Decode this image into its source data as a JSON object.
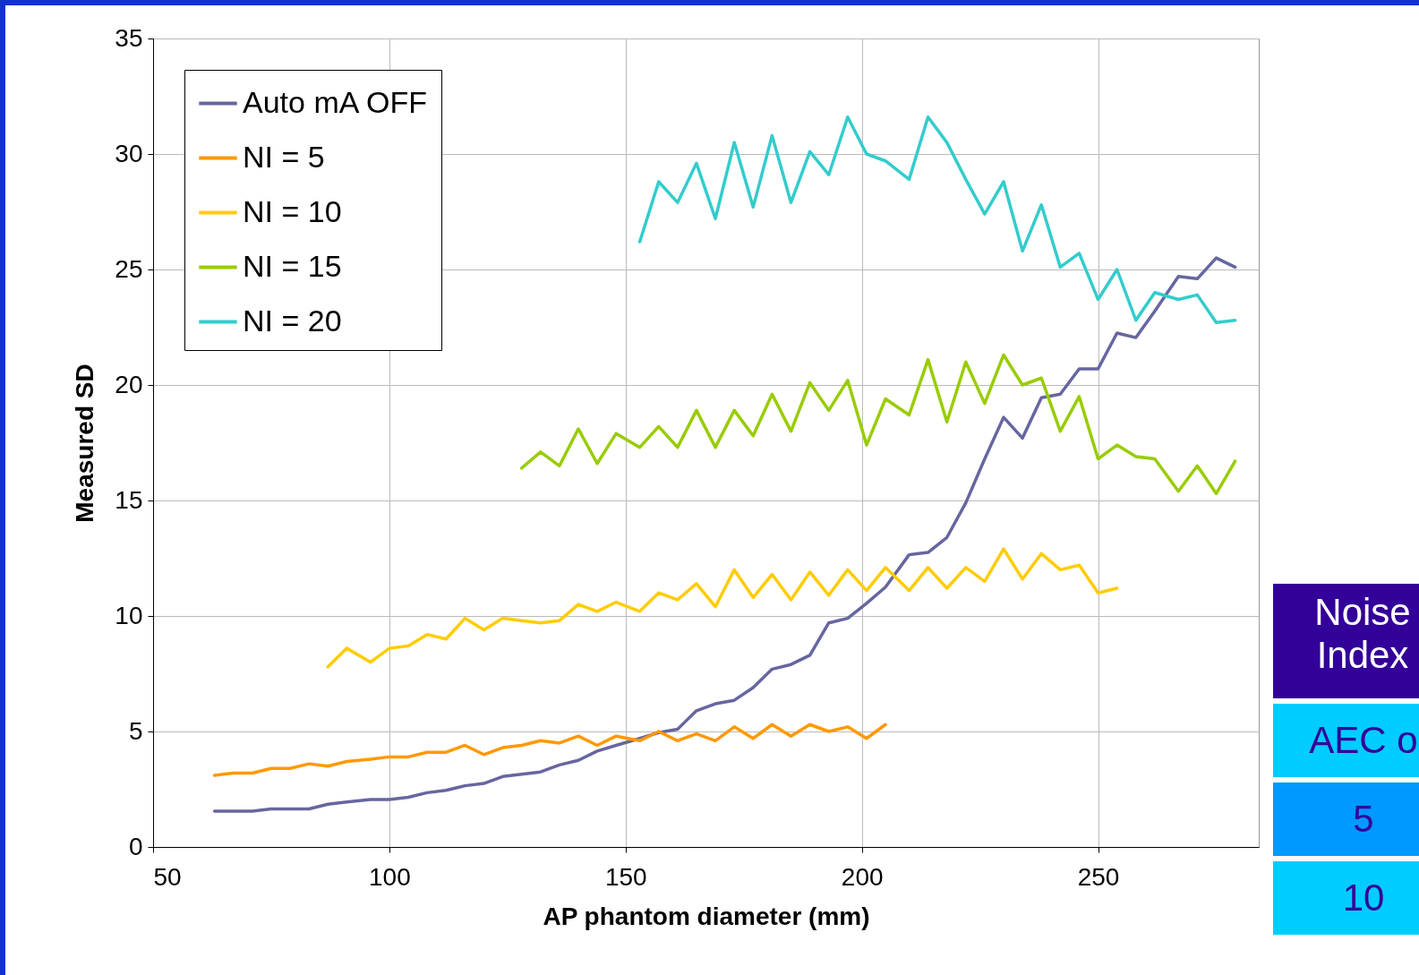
{
  "chart_data": {
    "type": "line",
    "xlabel": "AP phantom diameter (mm)",
    "ylabel": "Measured SD",
    "xlim": [
      50,
      284
    ],
    "ylim": [
      0,
      35
    ],
    "xticks": [
      50,
      100,
      150,
      200,
      250
    ],
    "yticks": [
      0,
      5,
      10,
      15,
      20,
      25,
      30,
      35
    ],
    "grid": true,
    "legend": "top left",
    "annotations": [
      "Noise Index",
      "AEC o",
      "5",
      "10"
    ],
    "series": [
      {
        "name": "Auto mA OFF",
        "color": "#6666a0",
        "x": [
          63,
          67,
          71,
          75,
          79,
          83,
          87,
          91,
          96,
          100,
          104,
          108,
          112,
          116,
          120,
          124,
          128,
          132,
          136,
          140,
          144,
          148,
          153,
          157,
          161,
          165,
          169,
          173,
          177,
          181,
          185,
          189,
          193,
          197,
          201,
          205,
          210,
          214,
          218,
          222,
          226,
          230,
          234,
          238,
          242,
          246,
          250,
          254,
          258,
          262,
          267,
          271,
          275,
          279
        ],
        "values": [
          1.55,
          1.55,
          1.55,
          1.65,
          1.65,
          1.65,
          1.85,
          1.95,
          2.05,
          2.05,
          2.15,
          2.35,
          2.45,
          2.65,
          2.75,
          3.05,
          3.15,
          3.25,
          3.55,
          3.75,
          4.15,
          4.4,
          4.7,
          4.95,
          5.1,
          5.9,
          6.2,
          6.35,
          6.9,
          7.7,
          7.9,
          8.3,
          9.7,
          9.9,
          10.55,
          11.25,
          12.65,
          12.75,
          13.4,
          14.9,
          16.8,
          18.6,
          17.7,
          19.45,
          19.6,
          20.7,
          20.7,
          22.25,
          22.05,
          23.2,
          24.7,
          24.6,
          25.5,
          25.1
        ]
      },
      {
        "name": "NI = 5",
        "color": "#ff9900",
        "x": [
          63,
          67,
          71,
          75,
          79,
          83,
          87,
          91,
          96,
          100,
          104,
          108,
          112,
          116,
          120,
          124,
          128,
          132,
          136,
          140,
          144,
          148,
          153,
          157,
          161,
          165,
          169,
          173,
          177,
          181,
          185,
          189,
          193,
          197,
          201,
          205
        ],
        "values": [
          3.1,
          3.2,
          3.2,
          3.4,
          3.4,
          3.6,
          3.5,
          3.7,
          3.8,
          3.9,
          3.9,
          4.1,
          4.1,
          4.4,
          4.0,
          4.3,
          4.4,
          4.6,
          4.5,
          4.8,
          4.4,
          4.8,
          4.6,
          5.0,
          4.6,
          4.9,
          4.6,
          5.2,
          4.7,
          5.3,
          4.8,
          5.3,
          5.0,
          5.2,
          4.7,
          5.3
        ]
      },
      {
        "name": "NI = 10",
        "color": "#ffcc00",
        "x": [
          87,
          91,
          96,
          100,
          104,
          108,
          112,
          116,
          120,
          124,
          128,
          132,
          136,
          140,
          144,
          148,
          153,
          157,
          161,
          165,
          169,
          173,
          177,
          181,
          185,
          189,
          193,
          197,
          201,
          205,
          210,
          214,
          218,
          222,
          226,
          230,
          234,
          238,
          242,
          246,
          250,
          254
        ],
        "values": [
          7.8,
          8.6,
          8.0,
          8.6,
          8.7,
          9.2,
          9.0,
          9.9,
          9.4,
          9.9,
          9.8,
          9.7,
          9.8,
          10.5,
          10.2,
          10.6,
          10.2,
          11.0,
          10.7,
          11.4,
          10.4,
          12.0,
          10.8,
          11.8,
          10.7,
          11.9,
          10.9,
          12.0,
          11.1,
          12.1,
          11.1,
          12.1,
          11.2,
          12.1,
          11.5,
          12.9,
          11.6,
          12.7,
          12.0,
          12.2,
          11.0,
          11.2
        ]
      },
      {
        "name": "NI = 15",
        "color": "#99cc00",
        "x": [
          128,
          132,
          136,
          140,
          144,
          148,
          153,
          157,
          161,
          165,
          169,
          173,
          177,
          181,
          185,
          189,
          193,
          197,
          201,
          205,
          210,
          214,
          218,
          222,
          226,
          230,
          234,
          238,
          242,
          246,
          250,
          254,
          258,
          262,
          267,
          271,
          275,
          279
        ],
        "values": [
          16.4,
          17.1,
          16.5,
          18.1,
          16.6,
          17.9,
          17.3,
          18.2,
          17.3,
          18.9,
          17.3,
          18.9,
          17.8,
          19.6,
          18.0,
          20.1,
          18.9,
          20.2,
          17.4,
          19.4,
          18.7,
          21.1,
          18.4,
          21.0,
          19.2,
          21.3,
          20.0,
          20.3,
          18.0,
          19.5,
          16.8,
          17.4,
          16.9,
          16.8,
          15.4,
          16.5,
          15.3,
          16.7
        ]
      },
      {
        "name": "NI = 20",
        "color": "#33cccc",
        "x": [
          153,
          157,
          161,
          165,
          169,
          173,
          177,
          181,
          185,
          189,
          193,
          197,
          201,
          205,
          210,
          214,
          218,
          222,
          226,
          230,
          234,
          238,
          242,
          246,
          250,
          254,
          258,
          262,
          267,
          271,
          275,
          279
        ],
        "values": [
          26.2,
          28.8,
          27.9,
          29.6,
          27.2,
          30.5,
          27.7,
          30.8,
          27.9,
          30.1,
          29.1,
          31.6,
          30.0,
          29.7,
          28.9,
          31.6,
          30.5,
          28.9,
          27.4,
          28.8,
          25.8,
          27.8,
          25.1,
          25.7,
          23.7,
          25.0,
          22.8,
          24.0,
          23.7,
          23.9,
          22.7,
          22.8
        ]
      }
    ]
  }
}
